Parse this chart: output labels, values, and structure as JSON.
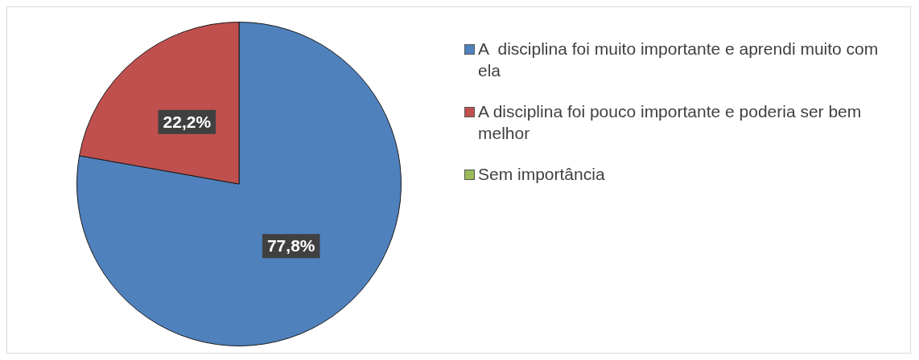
{
  "chart_data": {
    "type": "pie",
    "categories": [
      "A  disciplina foi muito importante e aprendi muito com ela",
      "A disciplina foi pouco importante e poderia ser bem melhor",
      "Sem importância"
    ],
    "values": [
      77.8,
      22.2,
      0
    ],
    "colors": [
      "#4f81bd",
      "#c0504d",
      "#9bbb59"
    ],
    "value_labels": [
      "77,8%",
      "22,2%",
      null
    ],
    "legend": "right"
  }
}
